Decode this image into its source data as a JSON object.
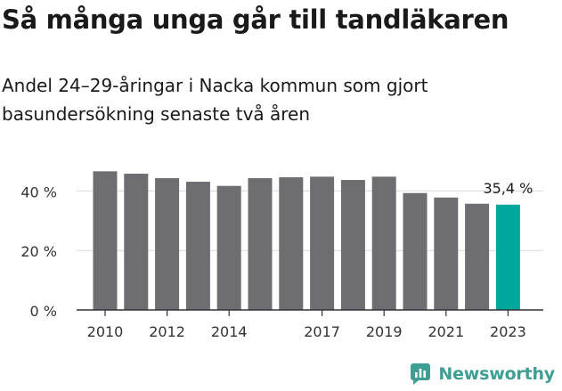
{
  "title": "Så många unga går till tandläkaren",
  "subtitle": "Andel 24–29-åringar i Nacka kommun som gjort basundersökning senaste två åren",
  "brand": {
    "name": "Newsworthy",
    "icon": "bar-chart-logo-icon",
    "color": "#3f9e93"
  },
  "chart_data": {
    "type": "bar",
    "categories": [
      "2010",
      "2011",
      "2012",
      "2013",
      "2014",
      "2015",
      "2016",
      "2017",
      "2018",
      "2019",
      "2020",
      "2021",
      "2022",
      "2023"
    ],
    "values": [
      46.6,
      45.8,
      44.3,
      43.1,
      41.7,
      44.3,
      44.6,
      44.8,
      43.7,
      44.8,
      39.3,
      37.8,
      35.7,
      35.4
    ],
    "tick_labels_x": [
      "2010",
      "2012",
      "2014",
      "2017",
      "2019",
      "2021",
      "2023"
    ],
    "yticks": [
      0,
      20,
      40
    ],
    "ytick_labels": [
      "0 %",
      "20 %",
      "40 %"
    ],
    "ylim": [
      0,
      50
    ],
    "value_label": "35,4 %",
    "highlight_index": 13,
    "bar_color": "#6e6d72",
    "highlight_color": "#00a79d",
    "grid": true
  }
}
